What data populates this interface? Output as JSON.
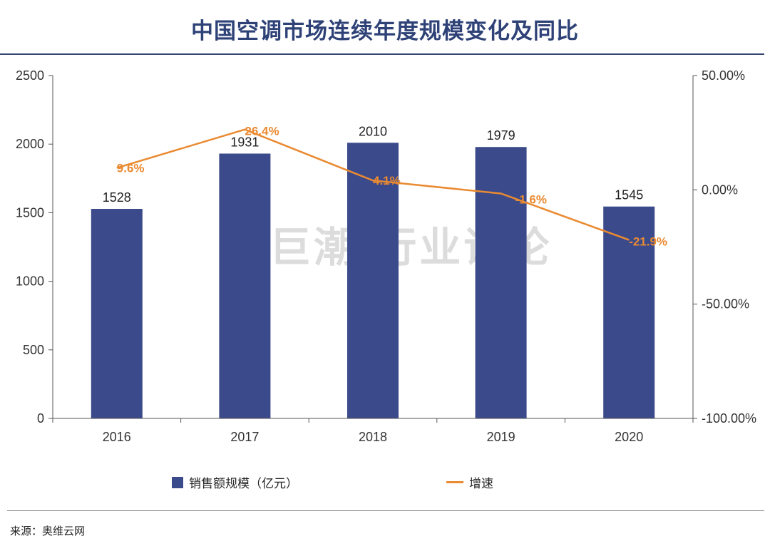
{
  "title": "中国空调市场连续年度规模变化及同比",
  "watermark": "巨潮 行业评论",
  "source": "来源：奥维云网",
  "colors": {
    "bar": "#3b4a8b",
    "line": "#ea8a31",
    "title": "#2e4277"
  },
  "chart_data": {
    "type": "bar+line",
    "categories": [
      "2016",
      "2017",
      "2018",
      "2019",
      "2020"
    ],
    "series": [
      {
        "name": "销售额规模（亿元）",
        "type": "bar",
        "axis": "left",
        "values": [
          1528,
          1931,
          2010,
          1979,
          1545
        ]
      },
      {
        "name": "增速",
        "type": "line",
        "axis": "right",
        "values": [
          9.6,
          26.4,
          4.1,
          -1.6,
          -21.9
        ],
        "labels": [
          "9.6%",
          "26.4%",
          "4.1%",
          "-1.6%",
          "-21.9%"
        ]
      }
    ],
    "left_axis": {
      "min": 0,
      "max": 2500,
      "ticks": [
        0,
        500,
        1000,
        1500,
        2000,
        2500
      ],
      "tick_labels": [
        "0",
        "500",
        "1000",
        "1500",
        "2000",
        "2500"
      ]
    },
    "right_axis": {
      "min": -100,
      "max": 50,
      "ticks": [
        50,
        0,
        -50,
        -100
      ],
      "tick_labels": [
        "50.00%",
        "0.00%",
        "-50.00%",
        "-100.00%"
      ]
    },
    "legend_position": "bottom"
  },
  "legend": {
    "bar_label": "销售额规模（亿元）",
    "line_label": "增速"
  }
}
